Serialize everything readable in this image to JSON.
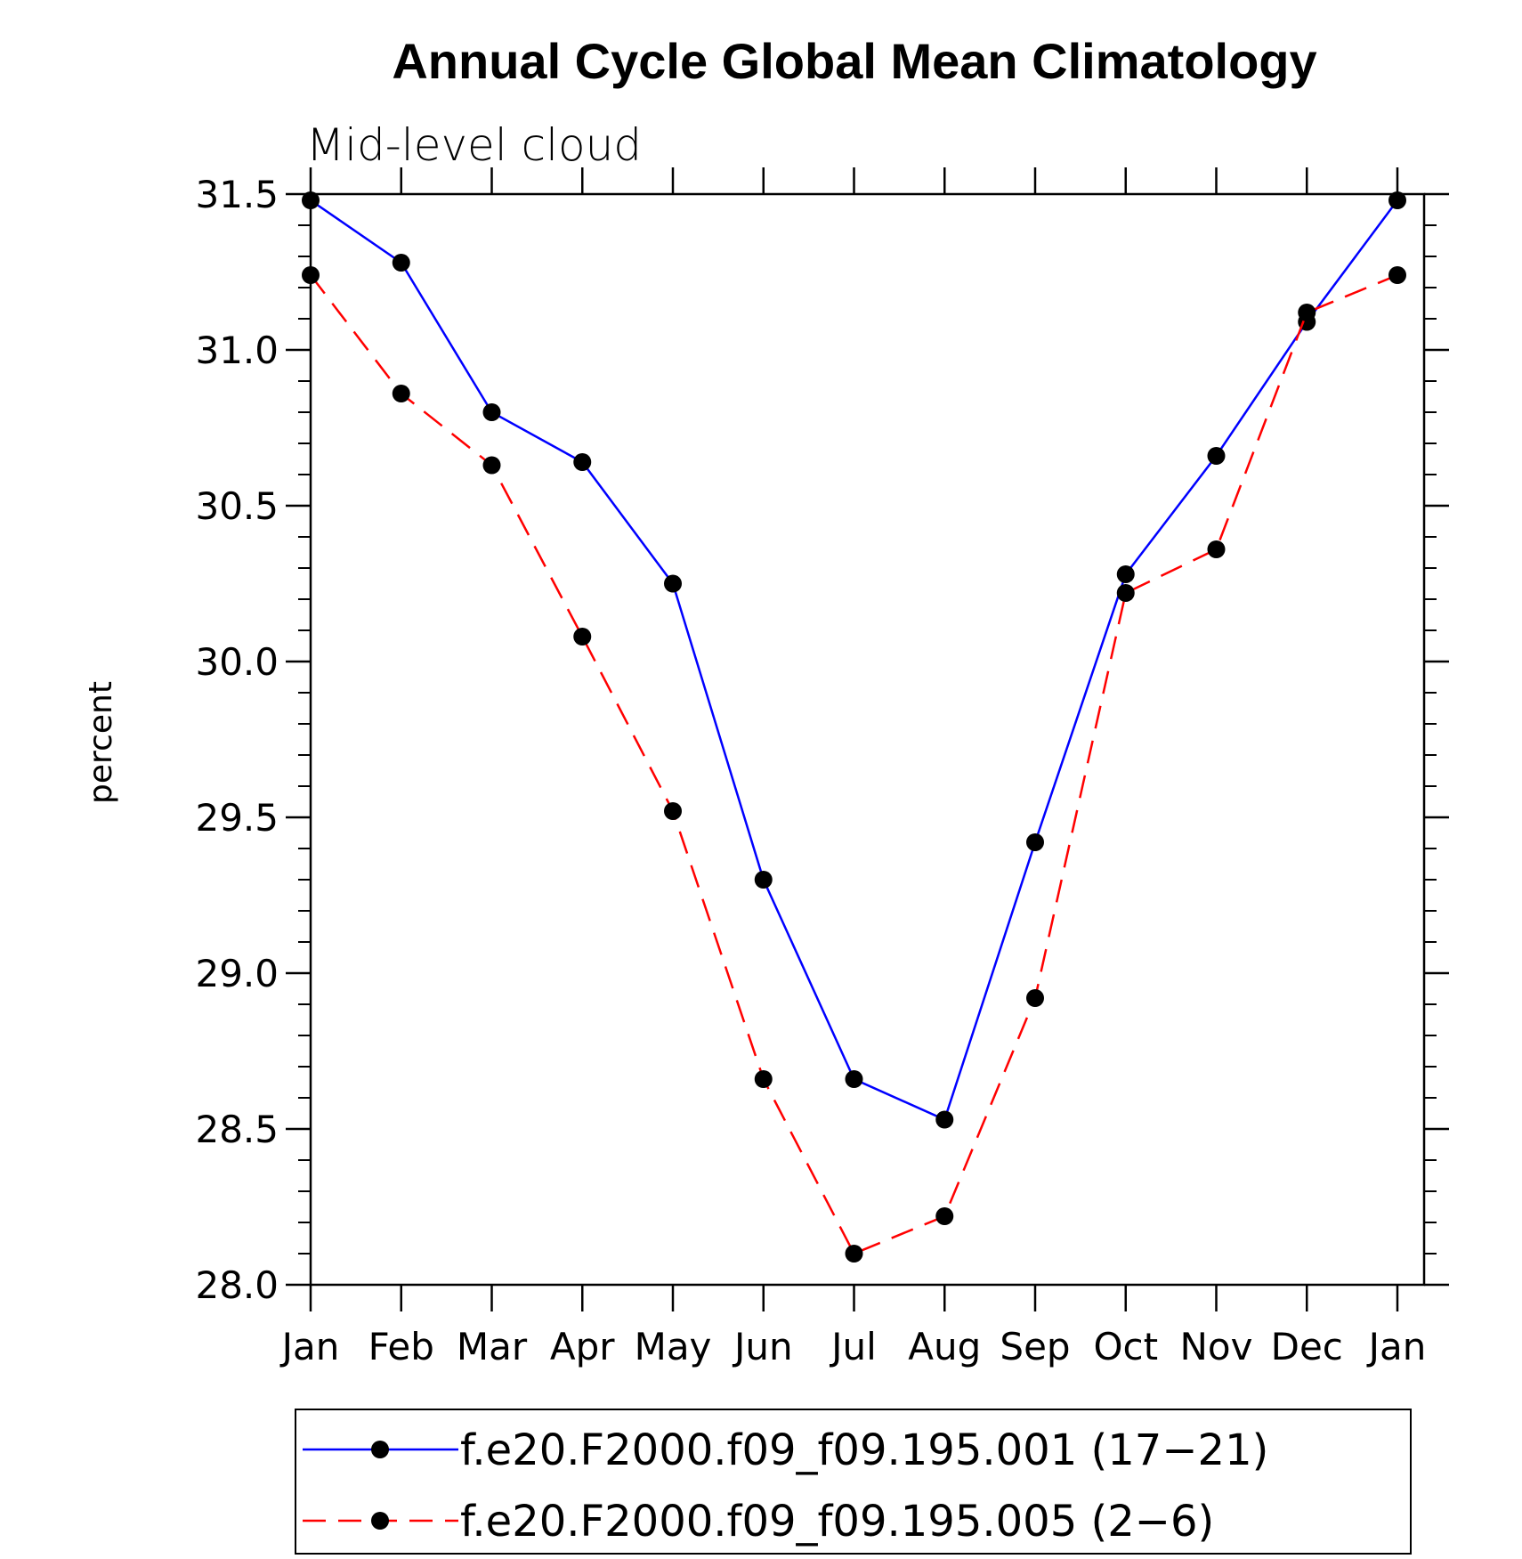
{
  "chart_data": {
    "type": "line",
    "title": "Annual Cycle Global Mean Climatology",
    "subtitle": "Mid-level cloud",
    "xlabel": "",
    "ylabel": "percent",
    "categories": [
      "Jan",
      "Feb",
      "Mar",
      "Apr",
      "May",
      "Jun",
      "Jul",
      "Aug",
      "Sep",
      "Oct",
      "Nov",
      "Dec",
      "Jan"
    ],
    "ylim": [
      28.0,
      31.5
    ],
    "yticks": [
      "28.0",
      "28.5",
      "29.0",
      "29.5",
      "30.0",
      "30.5",
      "31.0",
      "31.5"
    ],
    "grid": false,
    "legend_position": "bottom",
    "series": [
      {
        "name": "f.e20.F2000.f09_f09.195.001 (17−21)",
        "color": "#0000ff",
        "dash": "solid",
        "marker": "filled-circle",
        "values": [
          31.48,
          31.28,
          30.8,
          30.64,
          30.25,
          29.3,
          28.66,
          28.53,
          29.42,
          30.28,
          30.66,
          31.09,
          31.48
        ]
      },
      {
        "name": "f.e20.F2000.f09_f09.195.005 (2−6)",
        "color": "#ff0000",
        "dash": "dashed",
        "marker": "filled-circle",
        "values": [
          31.24,
          30.86,
          30.63,
          30.08,
          29.52,
          28.66,
          28.1,
          28.22,
          28.92,
          30.22,
          30.36,
          31.12,
          31.24
        ]
      }
    ]
  }
}
